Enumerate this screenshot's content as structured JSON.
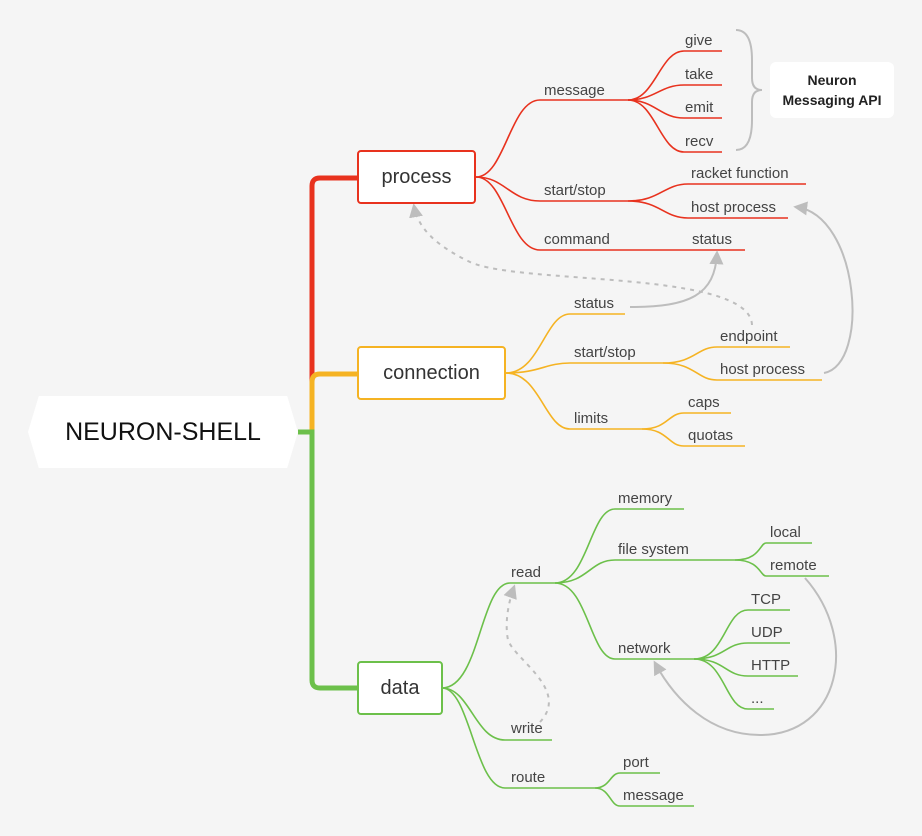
{
  "root": "NEURON-SHELL",
  "process": {
    "label": "process",
    "color": "#e8321e",
    "message": {
      "label": "message",
      "items": [
        "give",
        "take",
        "emit",
        "recv"
      ]
    },
    "start_stop": {
      "label": "start/stop",
      "items": [
        "racket function",
        "host process"
      ]
    },
    "command": {
      "label": "command",
      "items": [
        "status"
      ]
    },
    "api_note": "Neuron Messaging API"
  },
  "connection": {
    "label": "connection",
    "color": "#f5b323",
    "status": {
      "label": "status"
    },
    "start_stop": {
      "label": "start/stop",
      "items": [
        "endpoint",
        "host process"
      ]
    },
    "limits": {
      "label": "limits",
      "items": [
        "caps",
        "quotas"
      ]
    }
  },
  "data": {
    "label": "data",
    "color": "#6cc04a",
    "read": {
      "label": "read",
      "memory": "memory",
      "file_system": {
        "label": "file system",
        "items": [
          "local",
          "remote"
        ]
      },
      "network": {
        "label": "network",
        "items": [
          "TCP",
          "UDP",
          "HTTP",
          "..."
        ]
      }
    },
    "write": {
      "label": "write"
    },
    "route": {
      "label": "route",
      "items": [
        "port",
        "message"
      ]
    }
  }
}
